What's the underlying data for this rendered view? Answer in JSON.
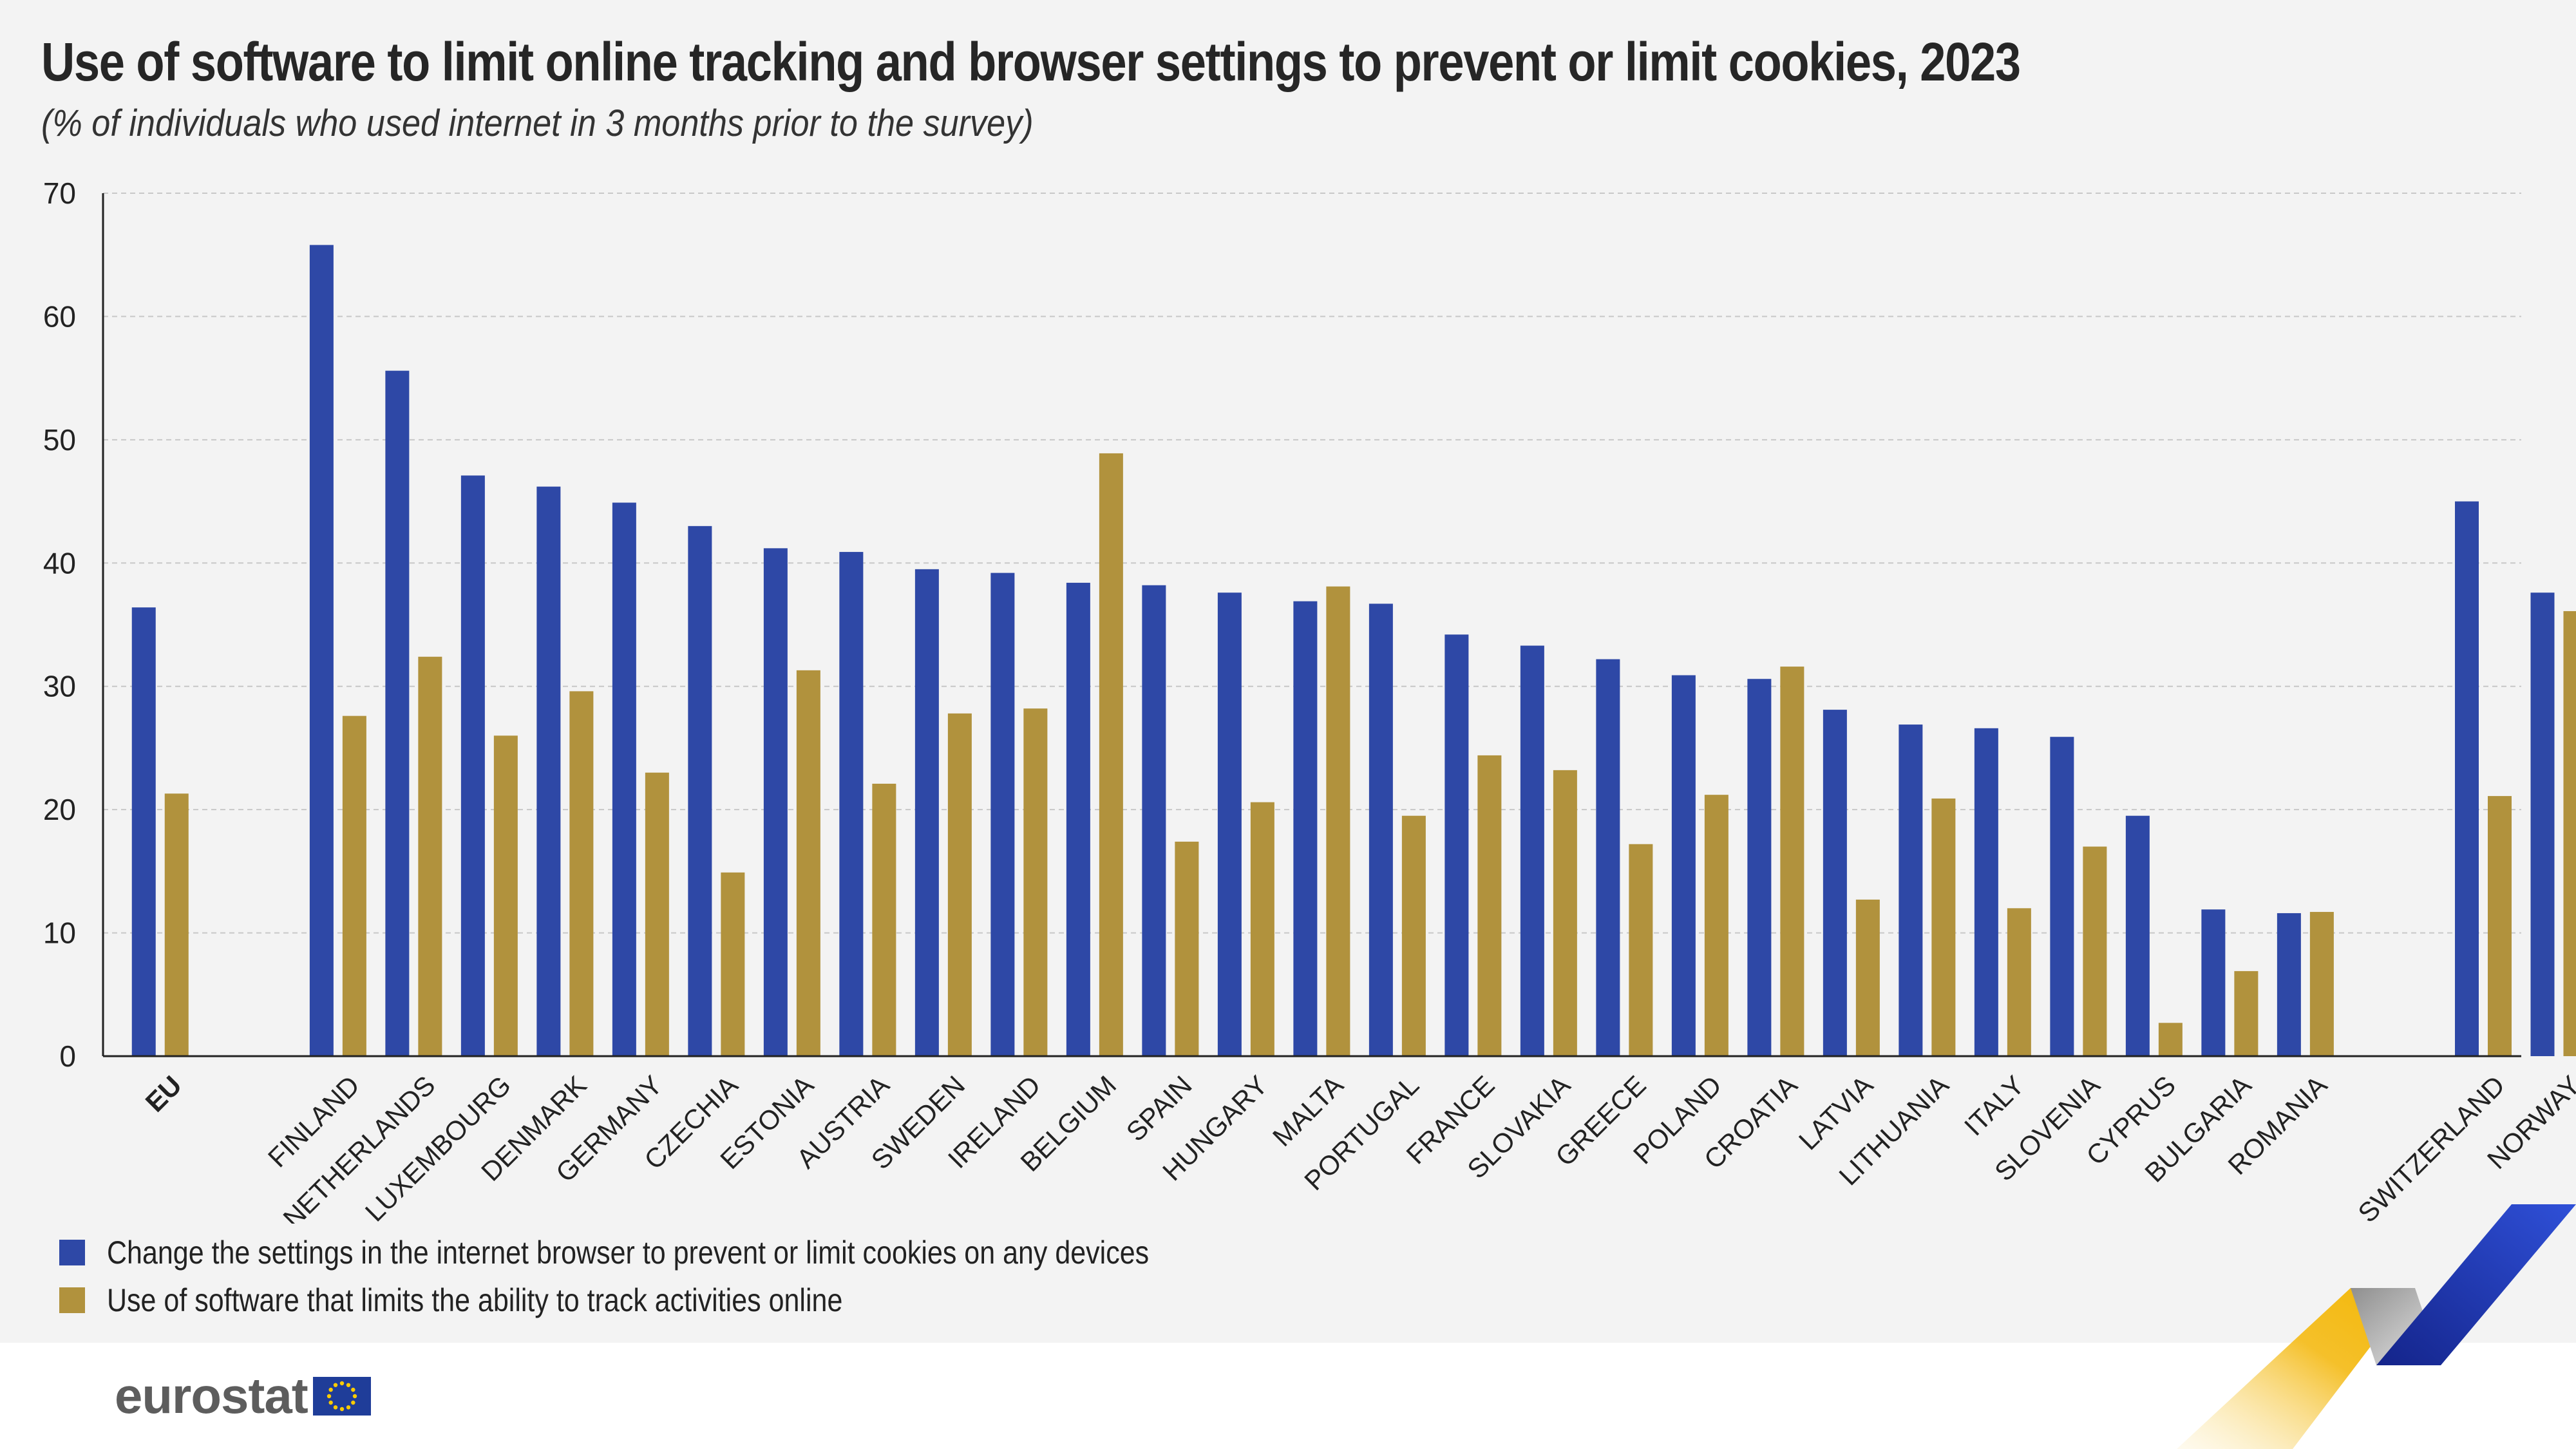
{
  "title": "Use of software to limit online tracking and browser settings to prevent or limit cookies, 2023",
  "subtitle": "(% of individuals who used internet in 3 months prior to the survey)",
  "logo_text": "eurostat",
  "colors": {
    "series1": "#2e48a6",
    "series2": "#b1923d",
    "grid": "#c8c8c8",
    "axis": "#222222",
    "text": "#222222"
  },
  "chart_data": {
    "type": "bar",
    "title": "Use of software to limit online tracking and browser settings to prevent or limit cookies, 2023",
    "subtitle": "(% of individuals who used internet in 3 months prior to the survey)",
    "xlabel": "",
    "ylabel": "",
    "ylim": [
      0,
      70
    ],
    "yticks": [
      0,
      10,
      20,
      30,
      40,
      50,
      60,
      70
    ],
    "grid": true,
    "legend_position": "bottom-left",
    "categories": [
      "EU",
      "FINLAND",
      "NETHERLANDS",
      "LUXEMBOURG",
      "DENMARK",
      "GERMANY",
      "CZECHIA",
      "ESTONIA",
      "AUSTRIA",
      "SWEDEN",
      "IRELAND",
      "BELGIUM",
      "SPAIN",
      "HUNGARY",
      "MALTA",
      "PORTUGAL",
      "FRANCE",
      "SLOVAKIA",
      "GREECE",
      "POLAND",
      "CROATIA",
      "LATVIA",
      "LITHUANIA",
      "ITALY",
      "SLOVENIA",
      "CYPRUS",
      "BULGARIA",
      "ROMANIA",
      "SWITZERLAND",
      "NORWAY"
    ],
    "category_groups": [
      1,
      2,
      2,
      2,
      2,
      2,
      2,
      2,
      2,
      2,
      2,
      2,
      2,
      2,
      2,
      2,
      2,
      2,
      2,
      2,
      2,
      2,
      2,
      2,
      2,
      2,
      2,
      2,
      3,
      3
    ],
    "bold_categories": [
      "EU"
    ],
    "series": [
      {
        "name": "Change the settings in the internet browser to prevent or limit cookies on any devices",
        "color": "#2e48a6",
        "values": [
          36.4,
          65.8,
          55.6,
          47.1,
          46.2,
          44.9,
          43.0,
          41.2,
          40.9,
          39.5,
          39.2,
          38.4,
          38.2,
          37.6,
          36.9,
          36.7,
          34.2,
          33.3,
          32.2,
          30.9,
          30.6,
          28.1,
          26.9,
          26.6,
          25.9,
          19.5,
          11.9,
          11.6,
          45.0,
          37.6
        ]
      },
      {
        "name": "Use of software that limits the ability to track activities online",
        "color": "#b1923d",
        "values": [
          21.3,
          27.6,
          32.4,
          26.0,
          29.6,
          23.0,
          14.9,
          31.3,
          22.1,
          27.8,
          28.2,
          48.9,
          17.4,
          20.6,
          38.1,
          19.5,
          24.4,
          23.2,
          17.2,
          21.2,
          31.6,
          12.7,
          20.9,
          12.0,
          17.0,
          2.7,
          6.9,
          11.7,
          21.1,
          36.1
        ]
      }
    ]
  }
}
